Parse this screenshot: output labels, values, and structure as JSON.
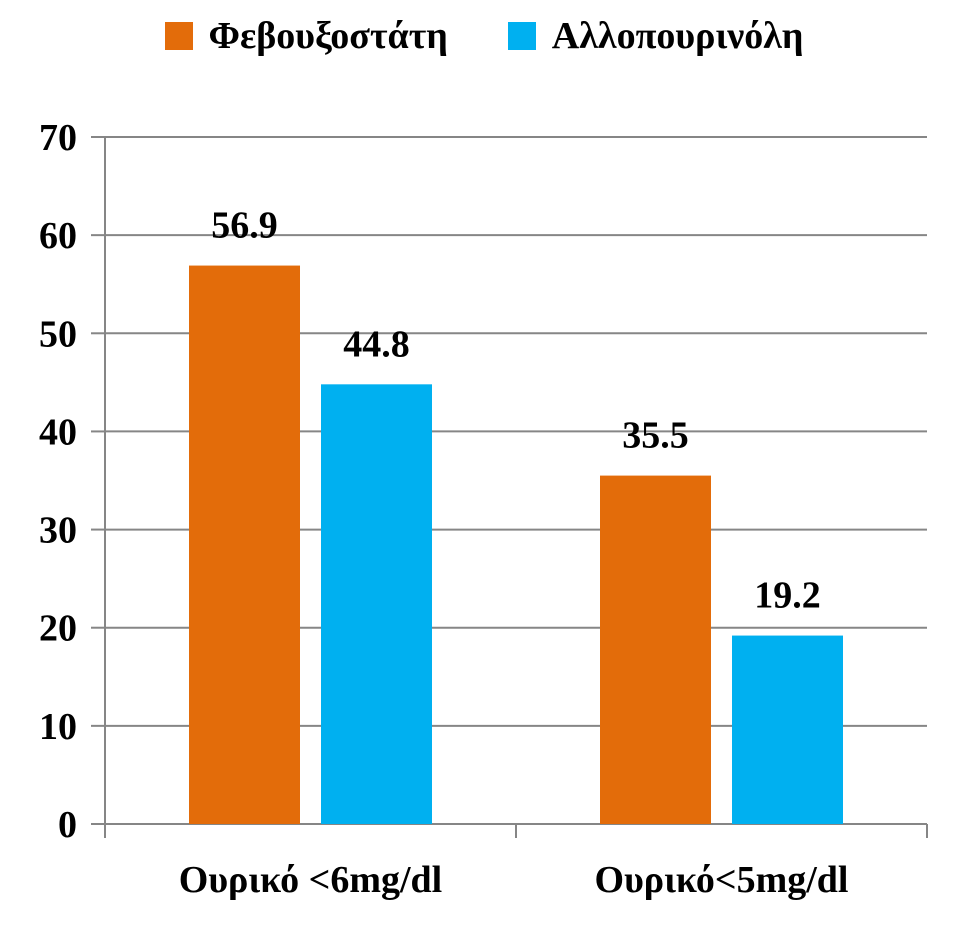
{
  "chart_data": {
    "type": "bar",
    "title": "",
    "xlabel": "",
    "ylabel": "",
    "categories": [
      "Ουρικό <6mg/dl",
      "Ουρικό<5mg/dl"
    ],
    "series": [
      {
        "name": "Φεβουξοστάτη",
        "color": "#E36C0A",
        "values": [
          56.9,
          35.5
        ],
        "labels": [
          "56.9",
          "35.5"
        ]
      },
      {
        "name": "Αλλοπουρινόλη",
        "color": "#00B0F0",
        "values": [
          44.8,
          19.2
        ],
        "labels": [
          "44.8",
          "19.2"
        ]
      }
    ],
    "ylim": [
      0,
      70
    ],
    "yticks": [
      "0",
      "10",
      "20",
      "30",
      "40",
      "50",
      "60",
      "70"
    ],
    "grid": true,
    "legend_position": "top-center"
  }
}
